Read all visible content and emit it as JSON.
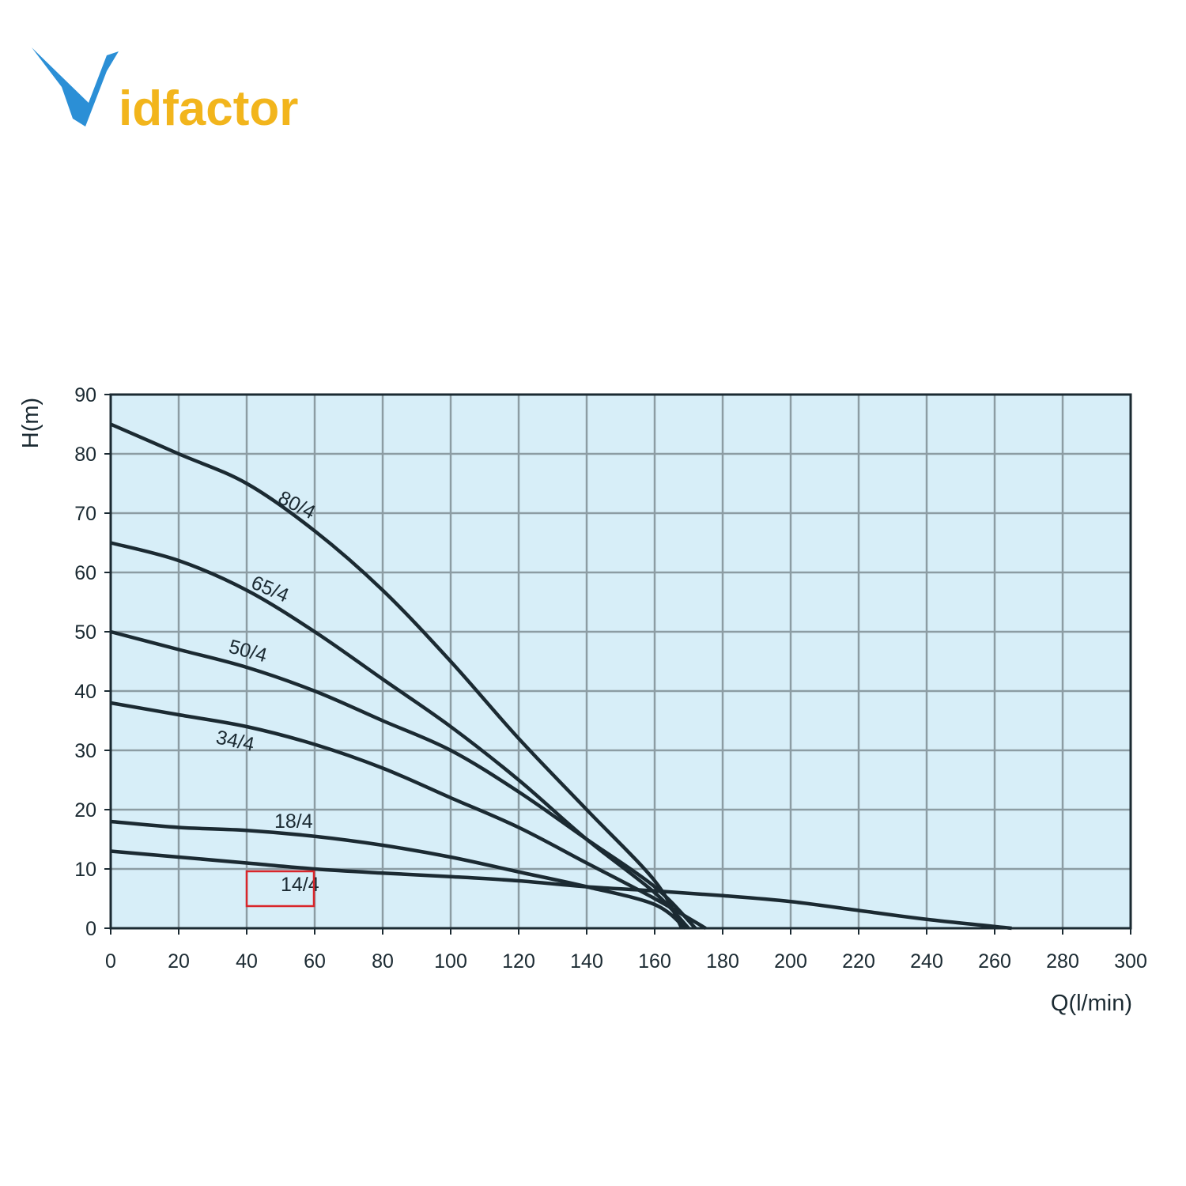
{
  "logo": [
    "V",
    "idfactor"
  ],
  "chart_data": {
    "type": "line",
    "ylabel": "H(m)",
    "xlabel": "Q(l/min)",
    "xlim": [
      0,
      300
    ],
    "xticks": [
      0,
      20,
      40,
      60,
      80,
      100,
      120,
      140,
      160,
      180,
      200,
      220,
      240,
      260,
      280,
      300
    ],
    "ylim": [
      0,
      90
    ],
    "yticks": [
      0,
      10,
      20,
      30,
      40,
      50,
      60,
      70,
      80,
      90
    ],
    "grid": true,
    "background": "#d7eef8",
    "series": [
      {
        "name": "80/4",
        "color": "#1b2a32",
        "x": [
          0,
          20,
          40,
          60,
          80,
          100,
          120,
          140,
          160,
          168
        ],
        "values": [
          85,
          80,
          75,
          67,
          57,
          45,
          32,
          20,
          8,
          0
        ]
      },
      {
        "name": "65/4",
        "color": "#1b2a32",
        "x": [
          0,
          20,
          40,
          60,
          80,
          100,
          120,
          140,
          160,
          170
        ],
        "values": [
          65,
          62,
          57,
          50,
          42,
          34,
          25,
          15,
          6,
          0
        ]
      },
      {
        "name": "50/4",
        "color": "#1b2a32",
        "x": [
          0,
          20,
          40,
          60,
          80,
          100,
          120,
          140,
          160,
          172
        ],
        "values": [
          50,
          47,
          44,
          40,
          35,
          30,
          23,
          15,
          7,
          0
        ]
      },
      {
        "name": "34/4",
        "color": "#1b2a32",
        "x": [
          0,
          20,
          40,
          60,
          80,
          100,
          120,
          140,
          160,
          175
        ],
        "values": [
          38,
          36,
          34,
          31,
          27,
          22,
          17,
          11,
          5,
          0
        ]
      },
      {
        "name": "18/4",
        "color": "#1b2a32",
        "x": [
          0,
          20,
          40,
          60,
          80,
          100,
          120,
          140,
          160,
          169
        ],
        "values": [
          18,
          17,
          16.5,
          15.5,
          14,
          12,
          9.5,
          7,
          4,
          0
        ]
      },
      {
        "name": "14/4",
        "color": "#1b2a32",
        "x": [
          0,
          20,
          40,
          60,
          80,
          100,
          120,
          140,
          160,
          180,
          200,
          220,
          240,
          265
        ],
        "values": [
          13,
          12,
          11,
          10,
          9.3,
          8.7,
          8,
          7,
          6.3,
          5.5,
          4.5,
          3,
          1.5,
          0
        ]
      }
    ]
  }
}
